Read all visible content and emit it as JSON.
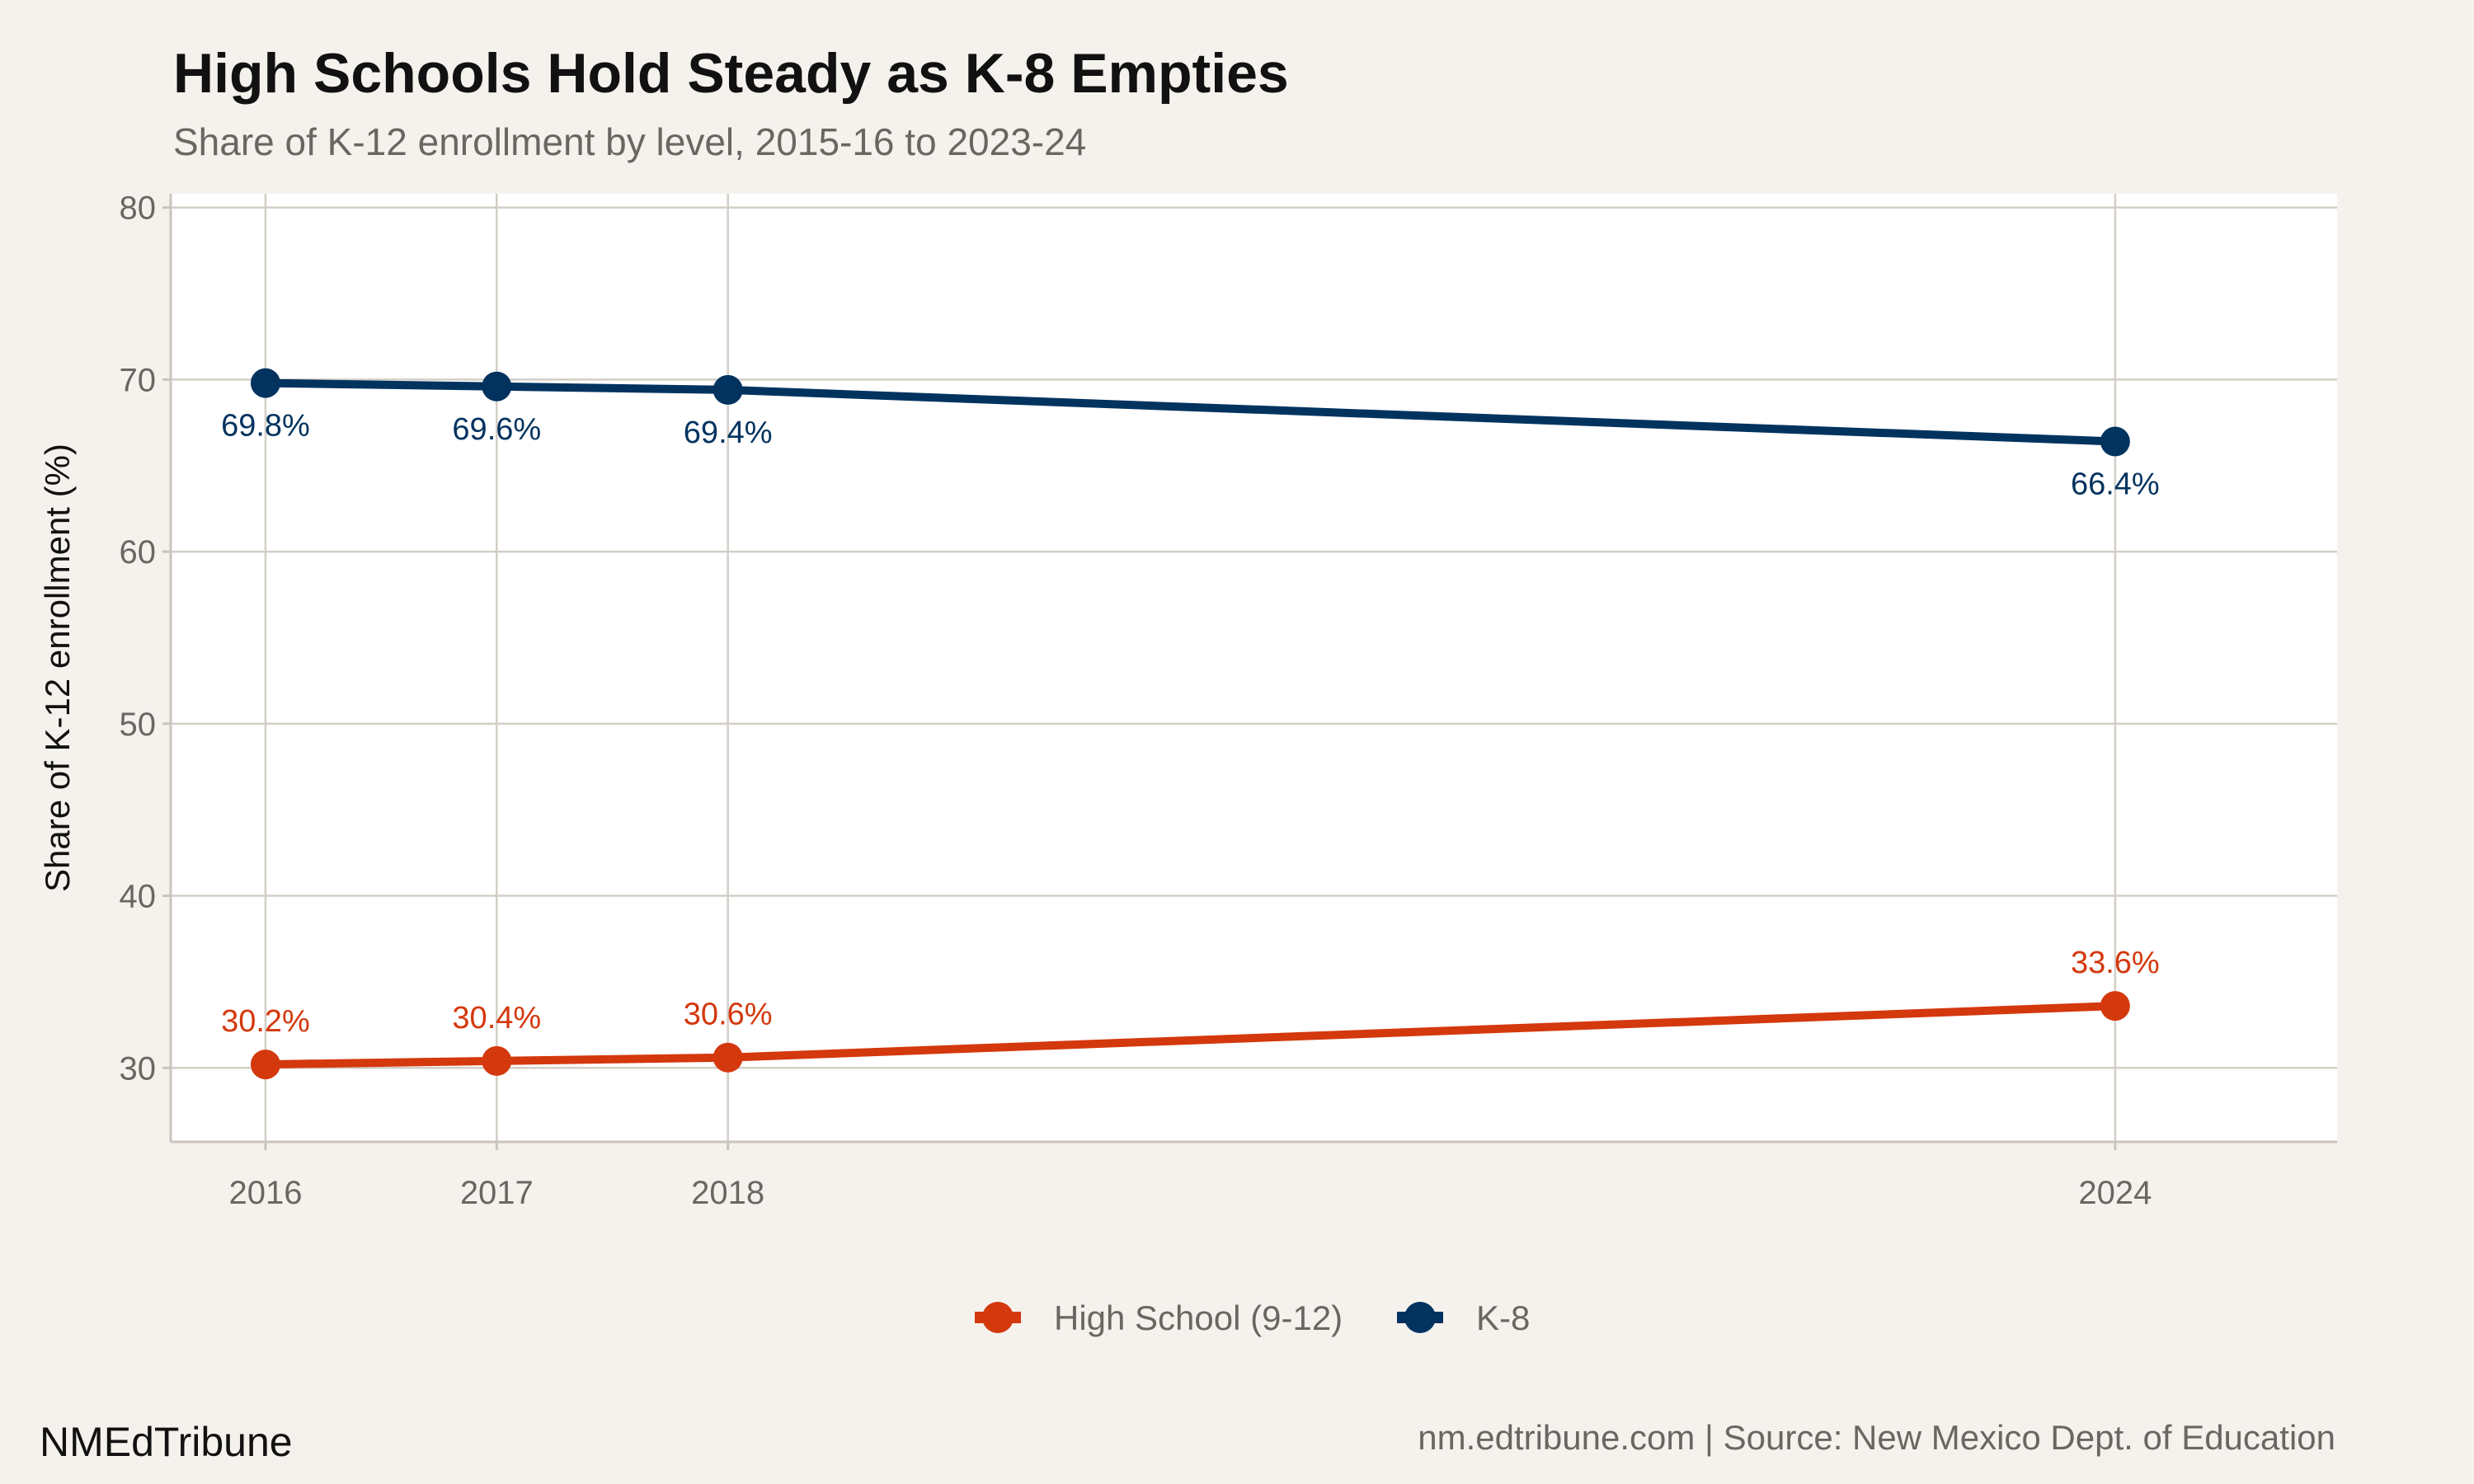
{
  "chart_data": {
    "type": "line",
    "title": "High Schools Hold Steady as K-8 Empties",
    "subtitle": "Share of K-12 enrollment by level, 2015-16 to 2023-24",
    "xlabel": "",
    "ylabel": "Share of K-12 enrollment (%)",
    "x": [
      2016,
      2017,
      2018,
      2024
    ],
    "xticks": [
      "2016",
      "2017",
      "2018",
      "2024"
    ],
    "yticks": [
      "30",
      "40",
      "50",
      "60",
      "70",
      "80"
    ],
    "xlim": [
      2015.59,
      2024.96
    ],
    "ylim": [
      25.7,
      80.8
    ],
    "grid": true,
    "legend_position": "bottom",
    "series": [
      {
        "name": "High School (9-12)",
        "color": "#d4380d",
        "values": [
          30.2,
          30.4,
          30.6,
          33.6
        ],
        "labels": [
          "30.2%",
          "30.4%",
          "30.6%",
          "33.6%"
        ],
        "label_side": "above"
      },
      {
        "name": "K-8",
        "color": "#02335f",
        "values": [
          69.8,
          69.6,
          69.4,
          66.4
        ],
        "labels": [
          "69.8%",
          "69.6%",
          "69.4%",
          "66.4%"
        ],
        "label_side": "below"
      }
    ]
  },
  "footer": {
    "brand": "NMEdTribune",
    "source": "nm.edtribune.com | Source: New Mexico Dept. of Education"
  }
}
